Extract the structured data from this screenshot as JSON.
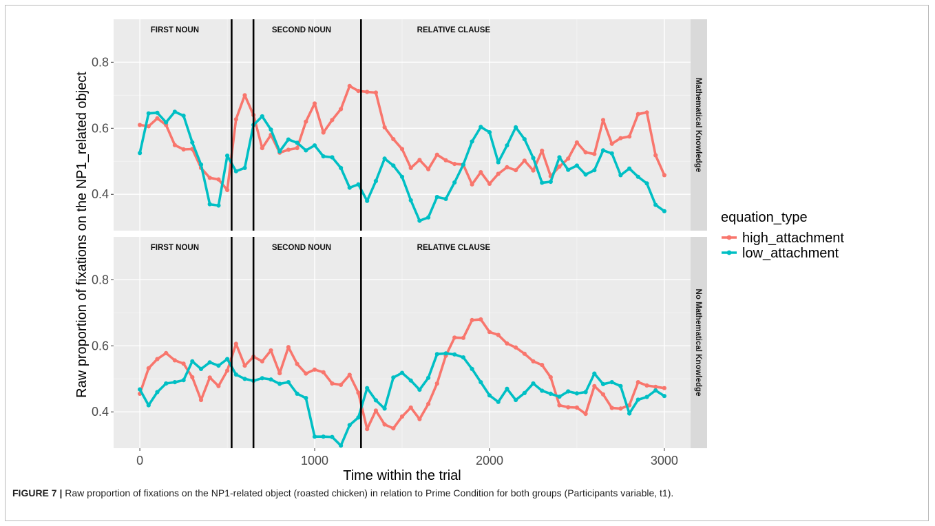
{
  "caption": {
    "label": "FIGURE 7 |",
    "text": " Raw proportion of fixations on the NP1-related object (roasted chicken) in relation to Prime Condition for both groups (Participants variable, t1)."
  },
  "chart_data": {
    "type": "line",
    "xlabel": "Time within the trial",
    "ylabel": "Raw proportion of fixations on the NP1_related object",
    "xlim": [
      -150,
      3150
    ],
    "ylim": [
      0.29,
      0.93
    ],
    "x_ticks": [
      0,
      1000,
      2000,
      3000
    ],
    "y_ticks": [
      0.4,
      0.6,
      0.8
    ],
    "grid": true,
    "legend": {
      "title": "equation_type",
      "placement": "right",
      "entries": [
        "high_attachment",
        "low_attachment"
      ]
    },
    "colors": {
      "high_attachment": "#f8766d",
      "low_attachment": "#00bfc4"
    },
    "vlines": [
      525,
      650,
      1265
    ],
    "regions": [
      {
        "label": "FIRST NOUN",
        "x": 200
      },
      {
        "label": "SECOND NOUN",
        "x": 925
      },
      {
        "label": "RELATIVE CLAUSE",
        "x": 1795
      }
    ],
    "x": [
      0,
      50,
      100,
      150,
      200,
      250,
      300,
      350,
      400,
      450,
      500,
      550,
      600,
      650,
      700,
      750,
      800,
      850,
      900,
      950,
      1000,
      1050,
      1100,
      1150,
      1200,
      1250,
      1300,
      1350,
      1400,
      1450,
      1500,
      1550,
      1600,
      1650,
      1700,
      1750,
      1800,
      1850,
      1900,
      1950,
      2000,
      2050,
      2100,
      2150,
      2200,
      2250,
      2300,
      2350,
      2400,
      2450,
      2500,
      2550,
      2600,
      2650,
      2700,
      2750,
      2800,
      2850,
      2900,
      2950,
      3000
    ],
    "panels": [
      {
        "strip": "Mathematical Knowledge",
        "series": [
          {
            "name": "high_attachment",
            "values": [
              0.61,
              0.606,
              0.63,
              0.61,
              0.549,
              0.536,
              0.537,
              0.48,
              0.45,
              0.445,
              0.413,
              0.627,
              0.7,
              0.64,
              0.54,
              0.58,
              0.526,
              0.535,
              0.54,
              0.62,
              0.675,
              0.587,
              0.625,
              0.658,
              0.728,
              0.713,
              0.71,
              0.708,
              0.603,
              0.567,
              0.537,
              0.48,
              0.504,
              0.476,
              0.52,
              0.503,
              0.492,
              0.49,
              0.43,
              0.467,
              0.432,
              0.462,
              0.482,
              0.473,
              0.502,
              0.472,
              0.532,
              0.455,
              0.484,
              0.508,
              0.557,
              0.527,
              0.522,
              0.625,
              0.553,
              0.57,
              0.575,
              0.643,
              0.648,
              0.518,
              0.458
            ]
          },
          {
            "name": "low_attachment",
            "values": [
              0.525,
              0.645,
              0.647,
              0.618,
              0.65,
              0.638,
              0.557,
              0.49,
              0.37,
              0.366,
              0.517,
              0.47,
              0.48,
              0.61,
              0.636,
              0.596,
              0.53,
              0.566,
              0.556,
              0.533,
              0.548,
              0.515,
              0.512,
              0.48,
              0.42,
              0.43,
              0.38,
              0.44,
              0.508,
              0.487,
              0.453,
              0.382,
              0.32,
              0.33,
              0.392,
              0.386,
              0.436,
              0.49,
              0.56,
              0.604,
              0.588,
              0.497,
              0.548,
              0.603,
              0.567,
              0.51,
              0.435,
              0.438,
              0.512,
              0.474,
              0.487,
              0.46,
              0.473,
              0.533,
              0.524,
              0.458,
              0.478,
              0.453,
              0.433,
              0.368,
              0.349
            ]
          }
        ]
      },
      {
        "strip": "No Mathematical Knowledge",
        "series": [
          {
            "name": "high_attachment",
            "values": [
              0.455,
              0.532,
              0.56,
              0.578,
              0.556,
              0.546,
              0.505,
              0.436,
              0.504,
              0.478,
              0.525,
              0.606,
              0.54,
              0.567,
              0.553,
              0.586,
              0.517,
              0.596,
              0.545,
              0.516,
              0.528,
              0.52,
              0.486,
              0.482,
              0.512,
              0.458,
              0.348,
              0.404,
              0.362,
              0.35,
              0.386,
              0.413,
              0.378,
              0.424,
              0.486,
              0.57,
              0.625,
              0.624,
              0.678,
              0.68,
              0.642,
              0.633,
              0.607,
              0.595,
              0.576,
              0.553,
              0.542,
              0.505,
              0.42,
              0.414,
              0.413,
              0.394,
              0.478,
              0.453,
              0.412,
              0.41,
              0.42,
              0.49,
              0.48,
              0.476,
              0.472
            ]
          },
          {
            "name": "low_attachment",
            "values": [
              0.468,
              0.42,
              0.46,
              0.486,
              0.49,
              0.496,
              0.553,
              0.53,
              0.55,
              0.54,
              0.56,
              0.513,
              0.5,
              0.494,
              0.502,
              0.498,
              0.485,
              0.49,
              0.455,
              0.442,
              0.325,
              0.325,
              0.324,
              0.298,
              0.36,
              0.383,
              0.472,
              0.435,
              0.41,
              0.504,
              0.518,
              0.495,
              0.467,
              0.503,
              0.575,
              0.577,
              0.574,
              0.565,
              0.53,
              0.49,
              0.45,
              0.43,
              0.47,
              0.436,
              0.457,
              0.486,
              0.464,
              0.455,
              0.446,
              0.462,
              0.456,
              0.46,
              0.516,
              0.484,
              0.49,
              0.478,
              0.395,
              0.437,
              0.445,
              0.465,
              0.448
            ]
          }
        ]
      }
    ]
  }
}
